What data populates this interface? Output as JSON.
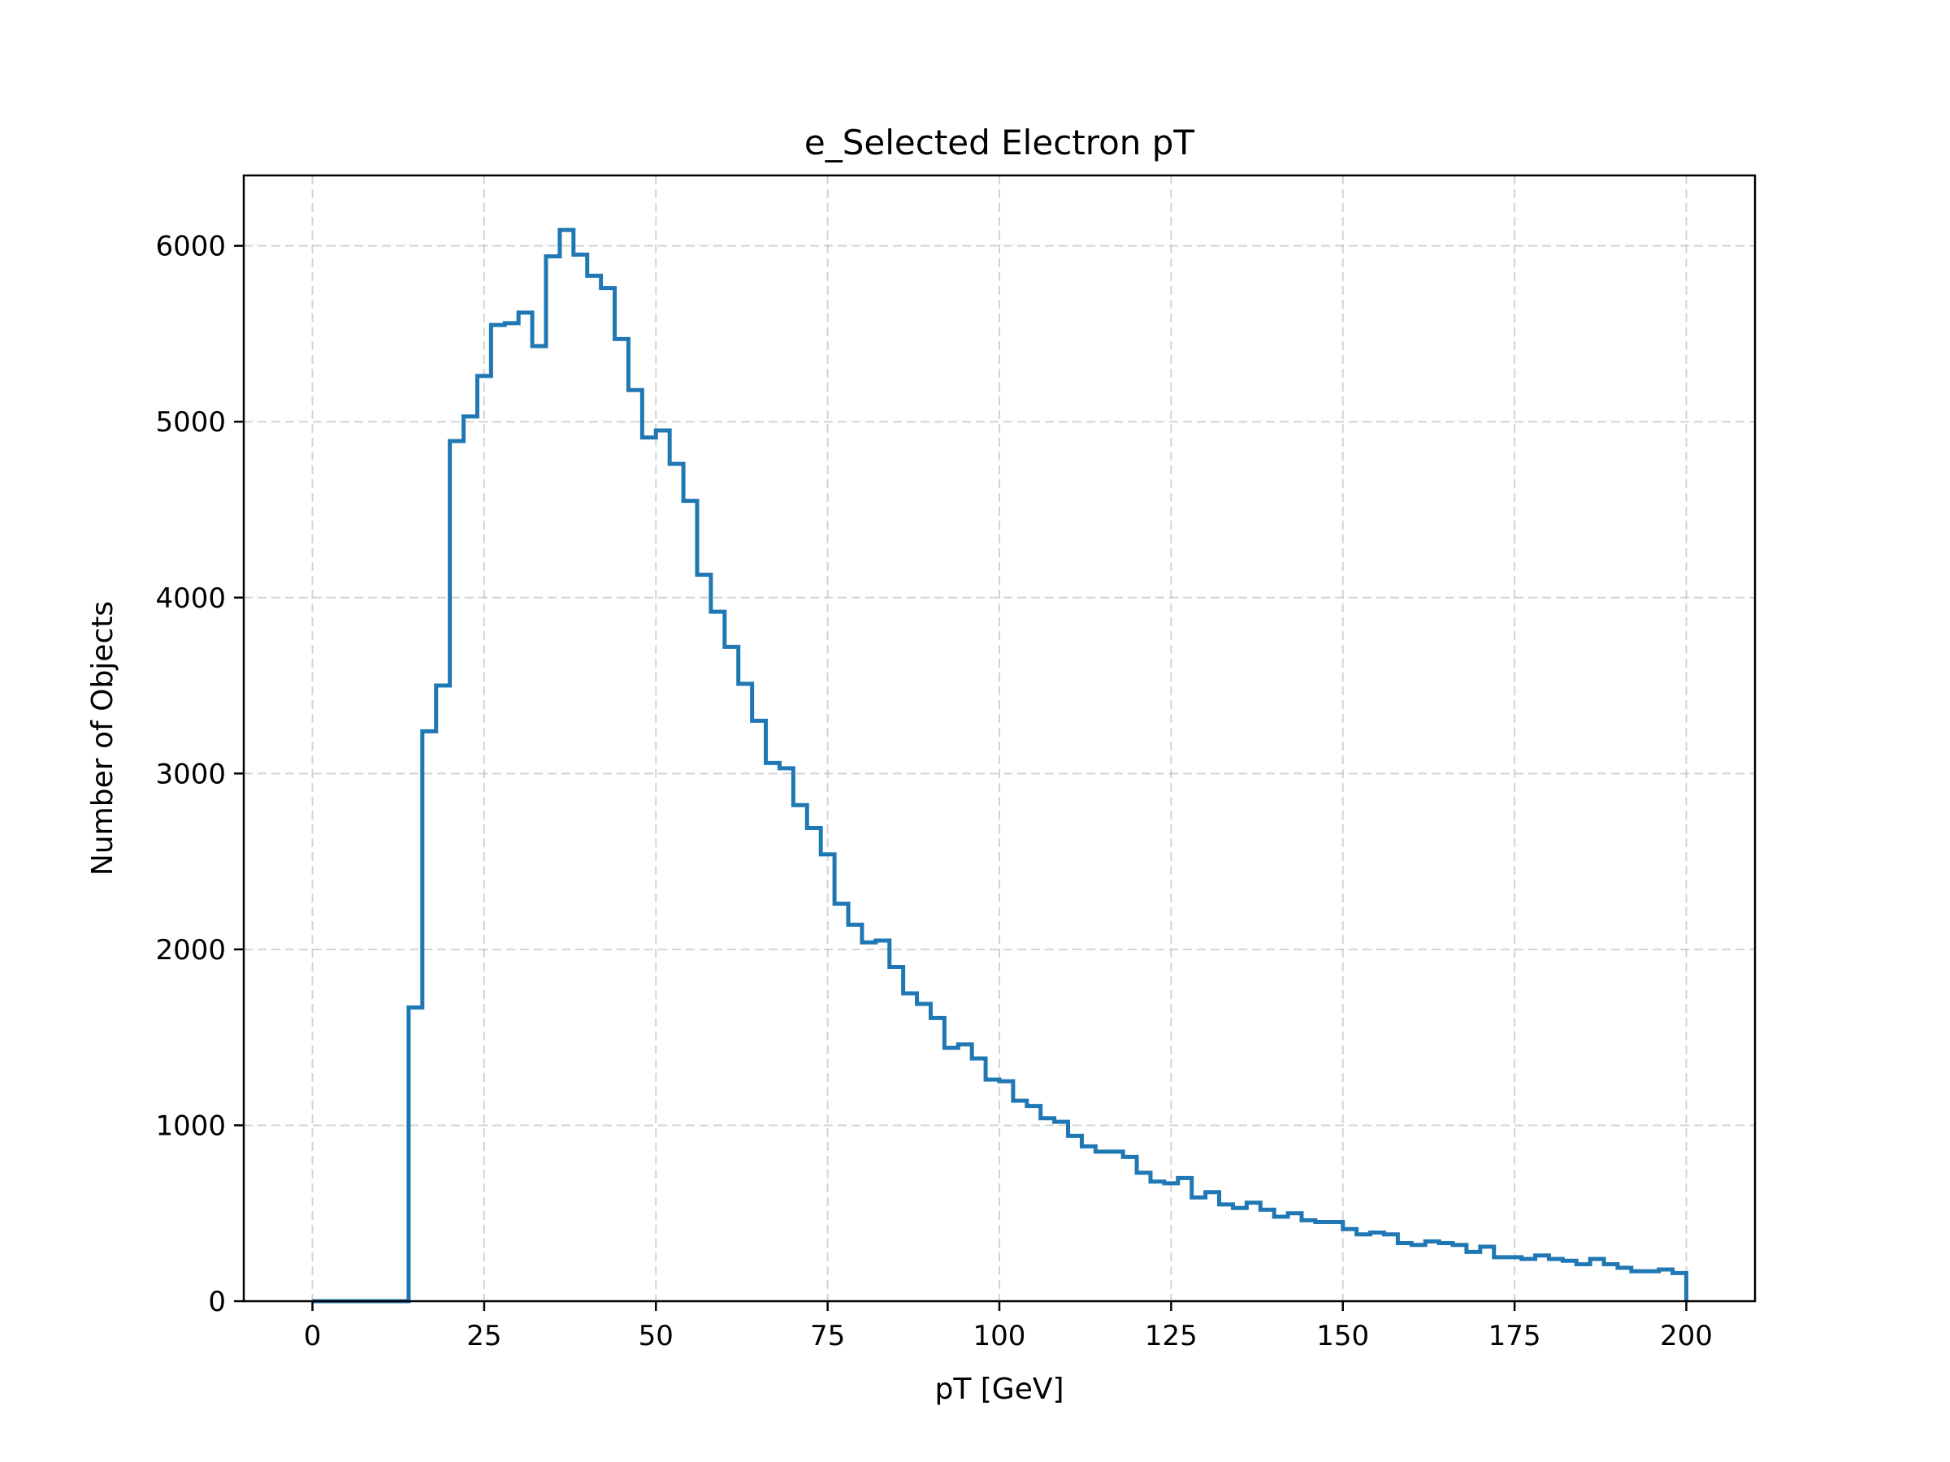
{
  "chart_data": {
    "type": "step-histogram",
    "title": "e_Selected Electron pT",
    "xlabel": "pT [GeV]",
    "ylabel": "Number of Objects",
    "xlim": [
      -10,
      210
    ],
    "ylim": [
      0,
      6400
    ],
    "xticks": [
      0,
      25,
      50,
      75,
      100,
      125,
      150,
      175,
      200
    ],
    "yticks": [
      0,
      1000,
      2000,
      3000,
      4000,
      5000,
      6000
    ],
    "grid": true,
    "color": "#1f77b4",
    "bin_width": 2,
    "x_start": 0,
    "values": [
      0,
      0,
      0,
      0,
      0,
      0,
      0,
      1670,
      3240,
      3500,
      4890,
      5030,
      5260,
      5550,
      5560,
      5620,
      5430,
      5940,
      6090,
      5950,
      5830,
      5760,
      5470,
      5180,
      4910,
      4950,
      4760,
      4550,
      4130,
      3920,
      3720,
      3510,
      3300,
      3060,
      3030,
      2820,
      2690,
      2540,
      2260,
      2140,
      2040,
      2050,
      1900,
      1750,
      1690,
      1610,
      1440,
      1460,
      1380,
      1260,
      1250,
      1140,
      1110,
      1040,
      1020,
      940,
      880,
      850,
      850,
      820,
      730,
      680,
      670,
      700,
      590,
      620,
      550,
      530,
      560,
      520,
      480,
      500,
      460,
      450,
      450,
      410,
      380,
      390,
      380,
      330,
      320,
      340,
      330,
      320,
      280,
      310,
      250,
      250,
      240,
      260,
      240,
      230,
      210,
      240,
      210,
      190,
      170,
      170,
      180,
      160
    ]
  }
}
